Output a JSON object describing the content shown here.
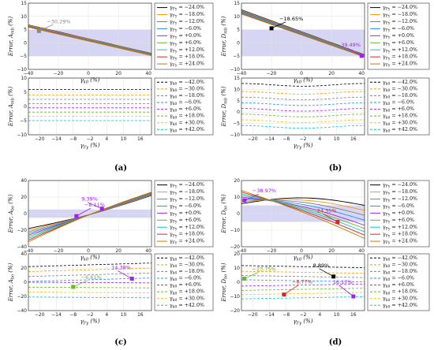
{
  "gamma_colors": [
    "#000000",
    "#ff9900",
    "#808080",
    "#1e90ff",
    "#a020f0",
    "#66bb22",
    "#00cccc",
    "#e62020",
    "#cc7a00"
  ],
  "dashed_colors": [
    "#000000",
    "#ff9900",
    "#808080",
    "#1e90ff",
    "#a020f0",
    "#66bb22",
    "#ffbf00",
    "#00cccc",
    "#e62020"
  ],
  "gamma_legend": [
    "γ_{F_y} = −24.0%",
    "γ_{F_y} = −18.0%",
    "γ_{F_y} = −12.0%",
    "γ_{F_y} = −6.0%",
    "γ_{F_y} = +0.0%",
    "γ_{F_y} = +6.0%",
    "γ_{F_y} = +12.0%",
    "γ_{F_y} = +18.0%",
    "γ_{F_y} = +24.0%"
  ],
  "kappa_legend": [
    "γ_{k_0} = −42.0%",
    "γ_{k_0} = −30.0%",
    "γ_{k_0} = −18.0%",
    "γ_{k_0} = −6.0%",
    "γ_{k_0} = +6.0%",
    "γ_{k_0} = +18.0%",
    "γ_{k_0} = +30.0%",
    "γ_{k_0} = +42.0%"
  ],
  "panel_labels": [
    "(a)",
    "(b)",
    "(c)",
    "(d)"
  ],
  "chart_data": [
    {
      "id": "a-top",
      "type": "line",
      "ylabel": "Error, A_{mb} (%)",
      "xlabel": "γ_{k_0} (%)",
      "xlim": [
        -40,
        42
      ],
      "ylim": [
        -10,
        15
      ],
      "xticks": [
        -40,
        -20,
        0,
        20,
        40
      ],
      "yticks": [
        -10,
        -5,
        0,
        5,
        10,
        15
      ],
      "band": [
        -5,
        5
      ],
      "x": [
        -40,
        -20,
        0,
        20,
        42
      ],
      "series_start": [
        6.8,
        6.7,
        6.5,
        6.4,
        6.3,
        6.2,
        6.1,
        6.0,
        5.9
      ],
      "series_end": [
        -4.0,
        -4.1,
        -4.2,
        -4.3,
        -4.4,
        -4.5,
        -4.6,
        -4.7,
        -4.8
      ],
      "annotations": [
        {
          "text": "−30.29%",
          "x": -33,
          "y": 4.5,
          "color": "#888888"
        }
      ]
    },
    {
      "id": "a-bot",
      "type": "line",
      "ylabel": "Error, A_{mb} (%)",
      "xlabel": "γ_{F_y} (%)",
      "xlim": [
        -24,
        20
      ],
      "ylim": [
        -10,
        10
      ],
      "xticks": [
        -20,
        -14,
        -8,
        -2,
        4,
        10,
        16
      ],
      "yticks": [
        -10,
        -5,
        0,
        5,
        10
      ],
      "levels": [
        6.0,
        4.0,
        2.5,
        1.0,
        -0.5,
        -2.0,
        -3.5,
        -5.0
      ]
    },
    {
      "id": "b-top",
      "type": "line",
      "ylabel": "Error, D_{mb} (%)",
      "xlabel": "γ_{k_0} (%)",
      "xlim": [
        -40,
        42
      ],
      "ylim": [
        -10,
        15
      ],
      "xticks": [
        -40,
        -20,
        0,
        20,
        40
      ],
      "yticks": [
        -10,
        -5,
        0,
        5,
        10,
        15
      ],
      "band": [
        -5,
        5
      ],
      "x": [
        -40,
        -20,
        0,
        20,
        42
      ],
      "series_start": [
        12.5,
        12.3,
        12.1,
        11.9,
        11.7,
        11.5,
        11.3,
        11.1,
        10.9
      ],
      "series_end": [
        -4.5,
        -4.6,
        -4.7,
        -4.8,
        -4.9,
        -5.0,
        -5.1,
        -5.2,
        -5.3
      ],
      "annotations": [
        {
          "text": "−18.65%",
          "x": -20,
          "y": 5.5,
          "color": "#000000"
        },
        {
          "text": "39.49%",
          "x": 40,
          "y": -4.9,
          "color": "#a020f0"
        }
      ]
    },
    {
      "id": "b-bot",
      "type": "line",
      "ylabel": "Error, D_{mb} (%)",
      "xlabel": "γ_{F_y} (%)",
      "xlim": [
        -24,
        20
      ],
      "ylim": [
        -10,
        15
      ],
      "xticks": [
        -20,
        -14,
        -8,
        -2,
        4,
        10,
        16
      ],
      "yticks": [
        -10,
        -5,
        0,
        5,
        10,
        15
      ],
      "levels": [
        12.0,
        8.5,
        6.0,
        3.5,
        1.0,
        -1.5,
        -4.0,
        -6.5
      ]
    },
    {
      "id": "c-top",
      "type": "line",
      "ylabel": "Error, A_{bo} (%)",
      "xlabel": "γ_{k_0} (%)",
      "xlim": [
        -40,
        42
      ],
      "ylim": [
        -40,
        40
      ],
      "xticks": [
        -40,
        -20,
        0,
        20,
        40
      ],
      "yticks": [
        -40,
        -20,
        0,
        20,
        40
      ],
      "band": [
        -5,
        5
      ],
      "x": [
        -40,
        -20,
        0,
        20,
        42
      ],
      "series_start": [
        -18,
        -20,
        -22,
        -24,
        -26,
        -28,
        -30,
        -32,
        -34
      ],
      "series_end": [
        22,
        22.5,
        23,
        23.5,
        24,
        24.5,
        25,
        25.5,
        26
      ],
      "annotations": [
        {
          "text": "9.39%",
          "x": 9,
          "y": 6,
          "color": "#a020f0"
        },
        {
          "text": "−8.11%",
          "x": -8,
          "y": -3,
          "color": "#a020f0"
        }
      ]
    },
    {
      "id": "c-bot",
      "type": "line",
      "ylabel": "Error, A_{bo} (%)",
      "xlabel": "γ_{F_y} (%)",
      "xlim": [
        -24,
        20
      ],
      "ylim": [
        -40,
        40
      ],
      "xticks": [
        -20,
        -14,
        -8,
        -2,
        4,
        10,
        16
      ],
      "yticks": [
        -40,
        -20,
        0,
        20,
        40
      ],
      "levels": [
        25,
        18,
        11,
        4,
        -3,
        -10,
        -17,
        -24
      ],
      "annotations": [
        {
          "text": "−6.61%",
          "x": -8,
          "y": -6.6,
          "color": "#66bb22"
        },
        {
          "text": "14.38%",
          "x": 13,
          "y": 5,
          "color": "#a020f0"
        }
      ]
    },
    {
      "id": "d-top",
      "type": "line",
      "ylabel": "Error, D_{bo} (%)",
      "xlabel": "γ_{k_0} (%)",
      "xlim": [
        -40,
        42
      ],
      "ylim": [
        -20,
        20
      ],
      "xticks": [
        -40,
        -20,
        0,
        20,
        40
      ],
      "yticks": [
        -20,
        -10,
        0,
        10,
        20
      ],
      "band": [
        -5,
        5
      ],
      "x": [
        -40,
        -20,
        0,
        20,
        42
      ],
      "series_start": [
        6,
        7,
        8,
        9,
        10,
        11,
        12,
        13,
        14
      ],
      "series_end": [
        5,
        2,
        -1,
        -4,
        -7,
        -9,
        -11,
        -13,
        -15
      ],
      "annotations": [
        {
          "text": "−38.97%",
          "x": -38,
          "y": 8,
          "color": "#a020f0"
        },
        {
          "text": "24.35%",
          "x": 24,
          "y": -5,
          "color": "#e62020"
        }
      ]
    },
    {
      "id": "d-bot",
      "type": "line",
      "ylabel": "Error, D_{bo} (%)",
      "xlabel": "γ_{F_y} (%)",
      "xlim": [
        -24,
        20
      ],
      "ylim": [
        -20,
        20
      ],
      "xticks": [
        -20,
        -14,
        -8,
        -2,
        4,
        10,
        16
      ],
      "yticks": [
        -20,
        -10,
        0,
        10,
        20
      ],
      "levels": [
        11,
        7,
        4,
        1,
        -2,
        -5,
        -8,
        -11
      ],
      "annotations": [
        {
          "text": "−23.75%",
          "x": -23,
          "y": 2.5,
          "color": "#66bb22"
        },
        {
          "text": "8.89%",
          "x": 8.9,
          "y": 4,
          "color": "#000000"
        },
        {
          "text": "−8.77%",
          "x": -8.8,
          "y": -8.7,
          "color": "#e62020"
        },
        {
          "text": "16.17%",
          "x": 16,
          "y": -10,
          "color": "#a020f0"
        }
      ]
    }
  ]
}
